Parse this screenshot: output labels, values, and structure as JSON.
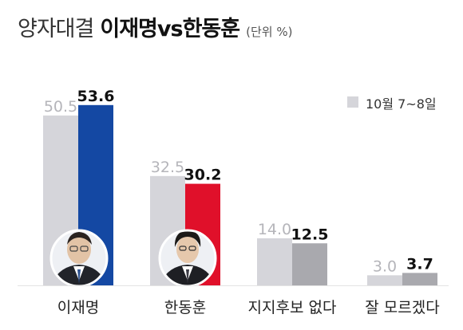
{
  "title": {
    "prefix": "양자대결",
    "main": "이재명vs한동훈",
    "unit": "(단위 %)"
  },
  "legend": {
    "previous_label": "10월 7~8일"
  },
  "colors": {
    "previous": "#d5d5da",
    "lee": "#1448a3",
    "han": "#e0102a",
    "other": "#a9a9ae",
    "prev_value_text": "#b5b5ba",
    "cur_value_text": "#111111"
  },
  "chart_data": {
    "type": "bar",
    "title": "양자대결 이재명vs한동훈",
    "unit": "(단위 %)",
    "categories": [
      "이재명",
      "한동훈",
      "지지후보 없다",
      "잘 모르겠다"
    ],
    "series": [
      {
        "name": "10월 7~8일",
        "values": [
          50.5,
          32.5,
          14.0,
          3.0
        ]
      },
      {
        "values": [
          53.6,
          30.2,
          12.5,
          3.7
        ]
      }
    ],
    "legend_position": "top-right",
    "grid": false,
    "ylim": [
      0,
      60
    ]
  }
}
